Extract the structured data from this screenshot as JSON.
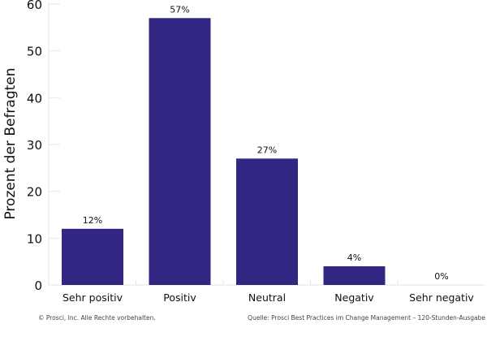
{
  "chart_data": {
    "type": "bar",
    "ylabel": "Prozent der Befragten",
    "xlabel": "",
    "categories": [
      "Sehr positiv",
      "Positiv",
      "Neutral",
      "Negativ",
      "Sehr negativ"
    ],
    "values": [
      12,
      57,
      27,
      4,
      0
    ],
    "data_labels": [
      "12%",
      "57%",
      "27%",
      "4%",
      "0%"
    ],
    "ylim": [
      0,
      60
    ],
    "yticks": [
      0,
      10,
      20,
      30,
      40,
      50,
      60
    ],
    "grid": false,
    "bar_color": "#312783"
  },
  "footer": {
    "copyright": "© Prosci, Inc. Alle Rechte vorbehalten.",
    "source": "Quelle: Prosci Best Practices im Change Management – 120-Stunden-Ausgabe"
  }
}
